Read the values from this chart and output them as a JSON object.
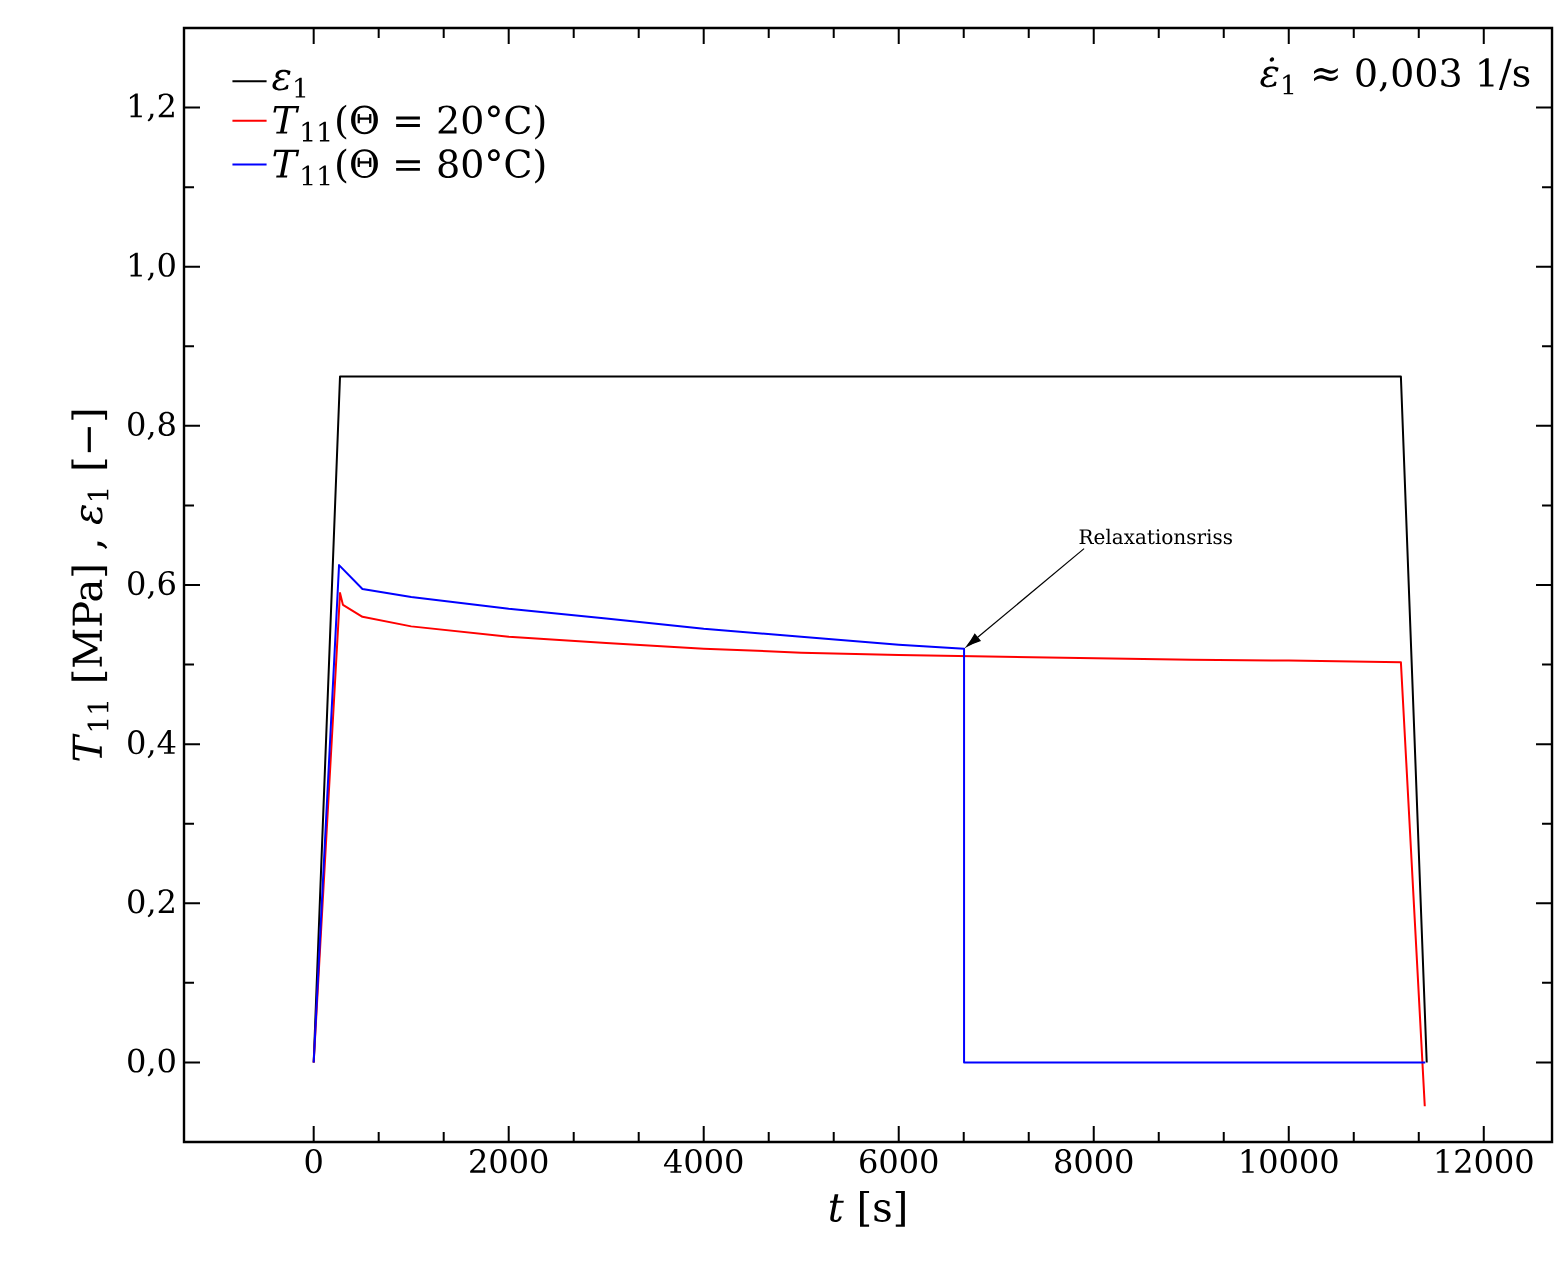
{
  "chart_data": {
    "type": "line",
    "xlabel": "*t* [s]",
    "ylabel": "*T*$_{11}$ [MPa] , *ε*$_{1}$ [−]",
    "xlim": [
      -1330,
      12700
    ],
    "ylim": [
      -0.1,
      1.3
    ],
    "xticks": [
      0,
      2000,
      4000,
      6000,
      8000,
      10000,
      12000
    ],
    "yticks": [
      {
        "value": 0,
        "label": "0,0"
      },
      {
        "value": 0.2,
        "label": "0,2"
      },
      {
        "value": 0.4,
        "label": "0,4"
      },
      {
        "value": 0.6,
        "label": "0,6"
      },
      {
        "value": 0.8,
        "label": "0,8"
      },
      {
        "value": 1.0,
        "label": "1,0"
      },
      {
        "value": 1.2,
        "label": "1,2"
      }
    ],
    "grid": false,
    "legend": "top left",
    "line_style": "solid",
    "marker": "none",
    "series": [
      {
        "name": "*ε*$_{1}$",
        "color": "#000000",
        "x": [
          0,
          270,
          11150,
          11415
        ],
        "values": [
          0,
          0.862,
          0.862,
          0
        ]
      },
      {
        "name": "*T*$_{11}$(Θ = 20°C)",
        "color": "#ff0000",
        "x": [
          0,
          270,
          300,
          500,
          1000,
          2000,
          3000,
          4000,
          5000,
          6000,
          7000,
          8000,
          9000,
          10000,
          11150,
          11395
        ],
        "values": [
          0,
          0.59,
          0.575,
          0.56,
          0.548,
          0.535,
          0.527,
          0.52,
          0.515,
          0.512,
          0.51,
          0.508,
          0.506,
          0.505,
          0.503,
          -0.055
        ]
      },
      {
        "name": "*T*$_{11}$(Θ = 80°C)",
        "color": "#0000ff",
        "x": [
          0,
          260,
          500,
          1000,
          2000,
          3000,
          4000,
          5000,
          6000,
          6670,
          6670,
          11400
        ],
        "values": [
          0,
          0.625,
          0.595,
          0.585,
          0.57,
          0.558,
          0.545,
          0.535,
          0.525,
          0.52,
          0,
          0
        ]
      }
    ],
    "annotations": [
      {
        "text": "Relaxationsriss",
        "x": 6670,
        "y": 0.52
      },
      "*ε̇*$_{1}$ ≈ 0,003 1/s"
    ]
  }
}
